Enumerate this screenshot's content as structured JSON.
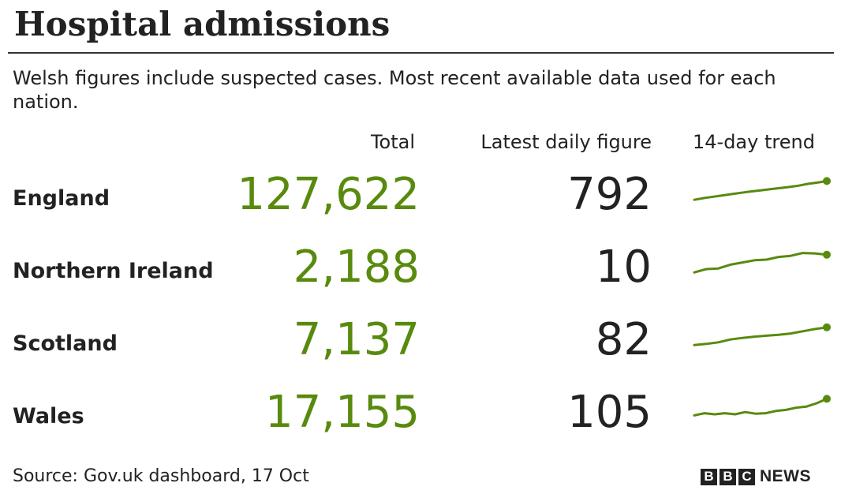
{
  "header": {
    "title": "Hospital admissions",
    "subtitle": "Welsh figures include suspected cases. Most recent available data used for each nation."
  },
  "columns": {
    "total": "Total",
    "latest": "Latest daily figure",
    "trend": "14-day trend"
  },
  "footer": {
    "source": "Source: Gov.uk dashboard, 17 Oct",
    "logo_letters": [
      "B",
      "B",
      "C"
    ],
    "logo_word": "NEWS"
  },
  "colors": {
    "total": "#588a0e",
    "trend_line": "#588a0e",
    "latest": "#222222"
  },
  "chart_data": {
    "type": "table",
    "rows": [
      {
        "nation": "England",
        "total": "127,622",
        "latest": "792",
        "trend": [
          0.1,
          0.18,
          0.24,
          0.3,
          0.36,
          0.42,
          0.48,
          0.53,
          0.58,
          0.63,
          0.68,
          0.74,
          0.82,
          0.88,
          0.95
        ]
      },
      {
        "nation": "Northern Ireland",
        "total": "2,188",
        "latest": "10",
        "trend": [
          0.1,
          0.25,
          0.28,
          0.45,
          0.55,
          0.65,
          0.68,
          0.8,
          0.85,
          0.98,
          0.96,
          0.9
        ]
      },
      {
        "nation": "Scotland",
        "total": "7,137",
        "latest": "82",
        "trend": [
          0.1,
          0.15,
          0.22,
          0.35,
          0.42,
          0.48,
          0.52,
          0.56,
          0.62,
          0.72,
          0.82,
          0.9
        ]
      },
      {
        "nation": "Wales",
        "total": "17,155",
        "latest": "105",
        "trend": [
          0.2,
          0.3,
          0.25,
          0.3,
          0.25,
          0.35,
          0.28,
          0.3,
          0.4,
          0.45,
          0.55,
          0.6,
          0.75,
          0.95
        ]
      }
    ]
  }
}
